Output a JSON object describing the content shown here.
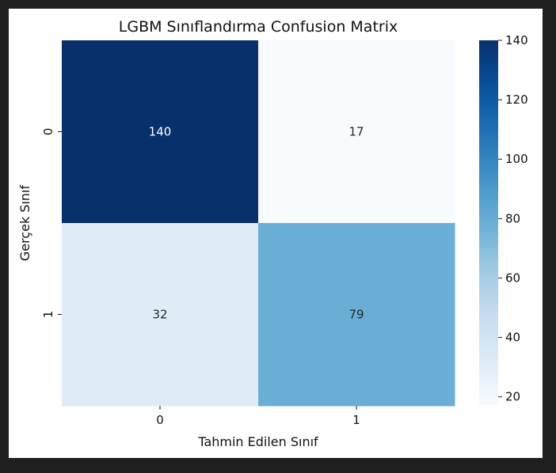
{
  "chart_data": {
    "type": "heatmap",
    "title": "LGBM Sınıflandırma Confusion Matrix",
    "xlabel": "Tahmin Edilen Sınıf",
    "ylabel": "Gerçek Sınıf",
    "x_categories": [
      "0",
      "1"
    ],
    "y_categories": [
      "0",
      "1"
    ],
    "values": [
      [
        140,
        17
      ],
      [
        32,
        79
      ]
    ],
    "colormap": "Blues",
    "colorbar": {
      "min": 17,
      "max": 140,
      "ticks": [
        20,
        40,
        60,
        80,
        100,
        120,
        140
      ]
    },
    "annotations": true
  }
}
